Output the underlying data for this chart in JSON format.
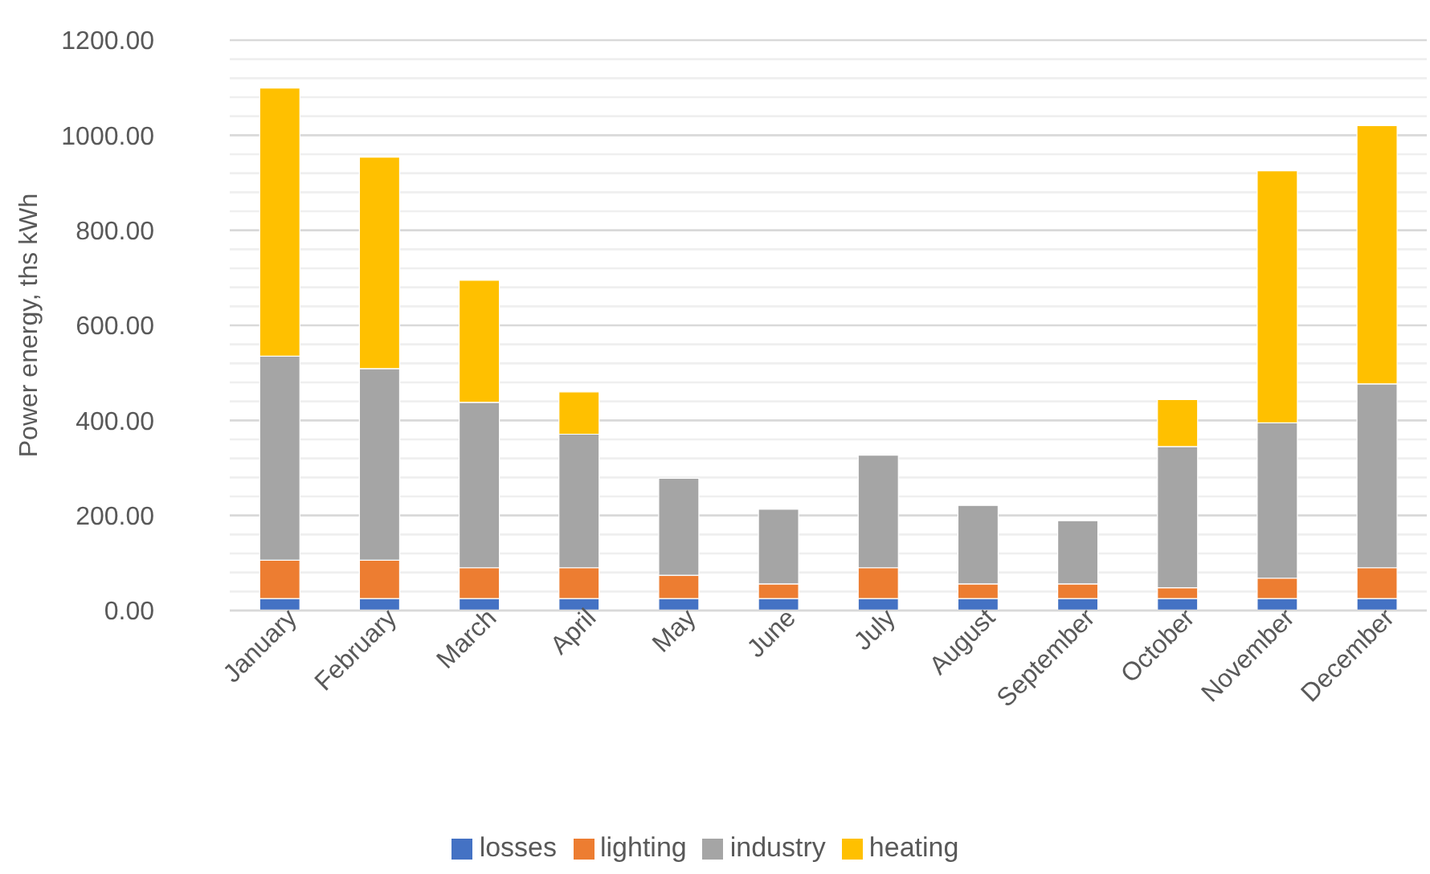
{
  "chart_data": {
    "type": "bar",
    "stacked": true,
    "ylabel": "Power energy, ths kWh",
    "categories": [
      "January",
      "February",
      "March",
      "April",
      "May",
      "June",
      "July",
      "August",
      "September",
      "October",
      "November",
      "December"
    ],
    "series": [
      {
        "name": "losses",
        "color": "#4472c4",
        "values": [
          25,
          25,
          25,
          25,
          25,
          25,
          25,
          25,
          25,
          25,
          25,
          25
        ]
      },
      {
        "name": "lighting",
        "color": "#ed7d31",
        "values": [
          81,
          81,
          65,
          65,
          49,
          31,
          65,
          31,
          31,
          23,
          43,
          65
        ]
      },
      {
        "name": "industry",
        "color": "#a5a5a5",
        "values": [
          429,
          403,
          348,
          281,
          204,
          157,
          237,
          165,
          133,
          297,
          327,
          387
        ]
      },
      {
        "name": "heating",
        "color": "#ffc000",
        "values": [
          564,
          445,
          257,
          89,
          0,
          0,
          0,
          0,
          0,
          99,
          530,
          543
        ]
      }
    ],
    "ylim": [
      0,
      1200
    ],
    "yticks": [
      {
        "value": 0,
        "label": "0.00"
      },
      {
        "value": 40,
        "label": null
      },
      {
        "value": 80,
        "label": null
      },
      {
        "value": 120,
        "label": null
      },
      {
        "value": 160,
        "label": null
      },
      {
        "value": 200,
        "label": "200.00"
      },
      {
        "value": 240,
        "label": null
      },
      {
        "value": 280,
        "label": null
      },
      {
        "value": 320,
        "label": null
      },
      {
        "value": 360,
        "label": null
      },
      {
        "value": 400,
        "label": "400.00"
      },
      {
        "value": 440,
        "label": null
      },
      {
        "value": 480,
        "label": null
      },
      {
        "value": 520,
        "label": null
      },
      {
        "value": 560,
        "label": null
      },
      {
        "value": 600,
        "label": "600.00"
      },
      {
        "value": 640,
        "label": null
      },
      {
        "value": 680,
        "label": null
      },
      {
        "value": 720,
        "label": null
      },
      {
        "value": 760,
        "label": null
      },
      {
        "value": 800,
        "label": "800.00"
      },
      {
        "value": 840,
        "label": null
      },
      {
        "value": 880,
        "label": null
      },
      {
        "value": 920,
        "label": null
      },
      {
        "value": 960,
        "label": null
      },
      {
        "value": 1000,
        "label": "1000.00"
      },
      {
        "value": 1040,
        "label": null
      },
      {
        "value": 1080,
        "label": null
      },
      {
        "value": 1120,
        "label": null
      },
      {
        "value": 1160,
        "label": null
      },
      {
        "value": 1200,
        "label": "1200.00"
      }
    ],
    "grid": "y",
    "legend": "bottom"
  }
}
